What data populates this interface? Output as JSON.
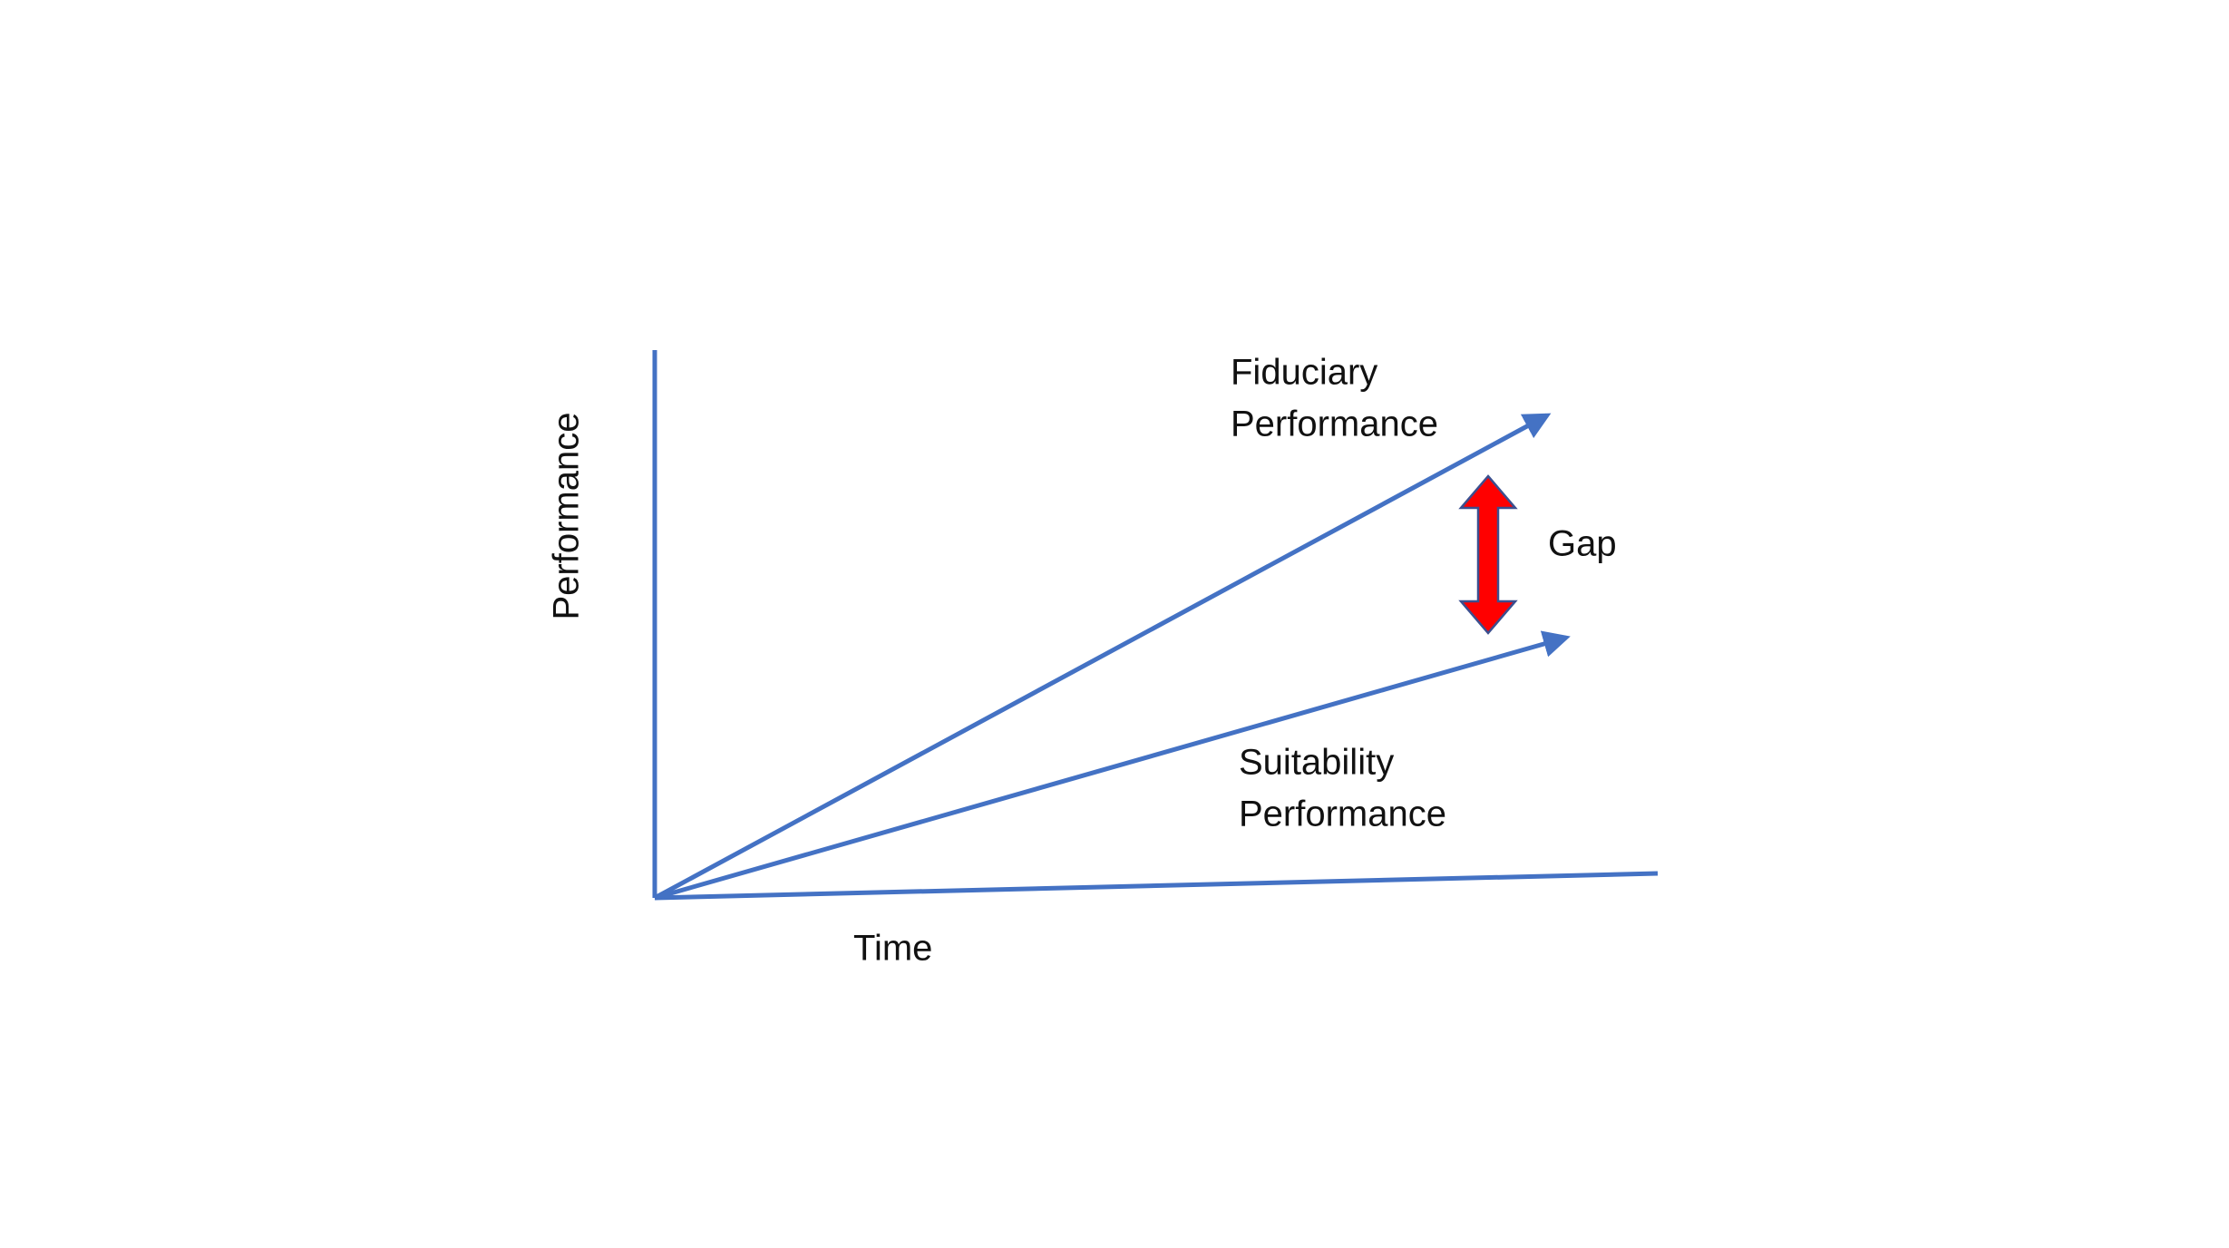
{
  "axes": {
    "y_label": "Performance",
    "x_label": "Time"
  },
  "lines": [
    {
      "label_lines": [
        "Fiduciary",
        "Performance"
      ]
    },
    {
      "label_lines": [
        "Suitability",
        "Performance"
      ]
    }
  ],
  "gap_label": "Gap"
}
